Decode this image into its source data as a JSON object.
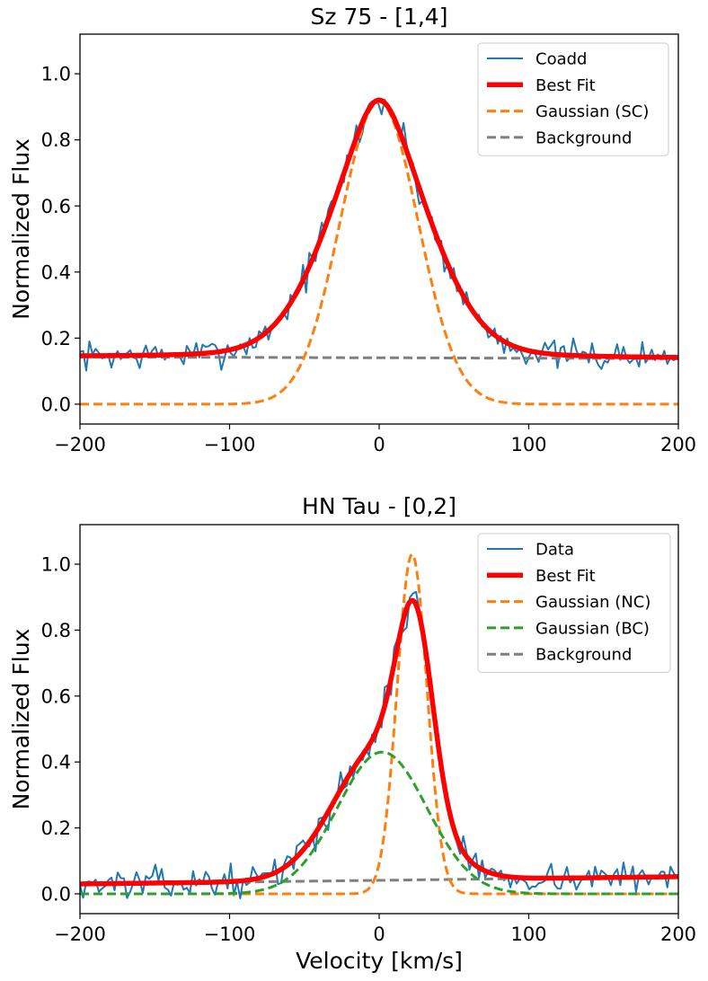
{
  "chart_data": [
    {
      "type": "line",
      "title": "Sz 75 - [1,4]",
      "xlabel": "",
      "ylabel": "Normalized Flux",
      "xlim": [
        -200,
        200
      ],
      "ylim": [
        -0.06,
        1.12
      ],
      "xticks": [
        "−200",
        "−100",
        "0",
        "100",
        "200"
      ],
      "xtick_values": [
        -200,
        -100,
        0,
        100,
        200
      ],
      "yticks": [
        "0.0",
        "0.2",
        "0.4",
        "0.6",
        "0.8",
        "1.0"
      ],
      "ytick_values": [
        0,
        0.2,
        0.4,
        0.6,
        0.8,
        1.0
      ],
      "legend_position": "top-right",
      "series": [
        {
          "name": "Coadd",
          "style": "noisy",
          "color": "#1f77b4",
          "width": 2,
          "dash": "",
          "noise_seed": 7,
          "noise_amp": 0.022,
          "components": [
            {
              "amp": 0.78,
              "mu": 0,
              "sigma": 35,
              "profile": "voigt"
            }
          ],
          "baseline": [
            0.143,
            0.138
          ]
        },
        {
          "name": "Best Fit",
          "style": "smooth",
          "color": "#ff0000",
          "width": 5.5,
          "dash": "",
          "components": [
            {
              "amp": 0.78,
              "mu": 0,
              "sigma": 35,
              "profile": "voigt"
            }
          ],
          "baseline": [
            0.143,
            0.138
          ]
        },
        {
          "name": "Gaussian (SC)",
          "style": "smooth",
          "color": "#ff7f0e",
          "width": 3,
          "dash": "10,5",
          "components": [
            {
              "amp": 0.915,
              "mu": 0,
              "sigma": 26,
              "profile": "gauss"
            }
          ],
          "baseline": [
            0,
            0
          ]
        },
        {
          "name": "Background",
          "style": "smooth",
          "color": "#7f7f7f",
          "width": 3,
          "dash": "10,5",
          "components": [],
          "baseline": [
            0.143,
            0.138
          ]
        }
      ]
    },
    {
      "type": "line",
      "title": "HN Tau - [0,2]",
      "xlabel": "Velocity [km/s]",
      "ylabel": "Normalized Flux",
      "xlim": [
        -200,
        200
      ],
      "ylim": [
        -0.06,
        1.12
      ],
      "xticks": [
        "−200",
        "−100",
        "0",
        "100",
        "200"
      ],
      "xtick_values": [
        -200,
        -100,
        0,
        100,
        200
      ],
      "yticks": [
        "0.0",
        "0.2",
        "0.4",
        "0.6",
        "0.8",
        "1.0"
      ],
      "ytick_values": [
        0,
        0.2,
        0.4,
        0.6,
        0.8,
        1.0
      ],
      "legend_position": "top-right",
      "series": [
        {
          "name": "Data",
          "style": "noisy",
          "color": "#1f77b4",
          "width": 2,
          "dash": "",
          "noise_seed": 13,
          "noise_amp": 0.022,
          "components": [
            {
              "amp": 0.55,
              "mu": 24,
              "sigma": 12,
              "profile": "gauss"
            },
            {
              "amp": 0.4,
              "mu": 0,
              "sigma": 30,
              "profile": "gauss"
            }
          ],
          "baseline": [
            0.03,
            0.052
          ]
        },
        {
          "name": "Best Fit",
          "style": "smooth",
          "color": "#ff0000",
          "width": 5.5,
          "dash": "",
          "components": [
            {
              "amp": 0.55,
              "mu": 24,
              "sigma": 12,
              "profile": "gauss"
            },
            {
              "amp": 0.4,
              "mu": 0,
              "sigma": 30,
              "profile": "gauss"
            }
          ],
          "baseline": [
            0.03,
            0.052
          ]
        },
        {
          "name": "Gaussian (NC)",
          "style": "smooth",
          "color": "#ff7f0e",
          "width": 3,
          "dash": "10,5",
          "components": [
            {
              "amp": 1.03,
              "mu": 22,
              "sigma": 10,
              "profile": "gauss"
            }
          ],
          "baseline": [
            0,
            0
          ]
        },
        {
          "name": "Gaussian (BC)",
          "style": "smooth",
          "color": "#2ca02c",
          "width": 3,
          "dash": "10,5",
          "components": [
            {
              "amp": 0.43,
              "mu": 2,
              "sigma": 30,
              "profile": "gauss"
            }
          ],
          "baseline": [
            0,
            0
          ]
        },
        {
          "name": "Background",
          "style": "smooth",
          "color": "#7f7f7f",
          "width": 3,
          "dash": "10,5",
          "components": [],
          "baseline": [
            0.03,
            0.052
          ]
        }
      ]
    }
  ]
}
